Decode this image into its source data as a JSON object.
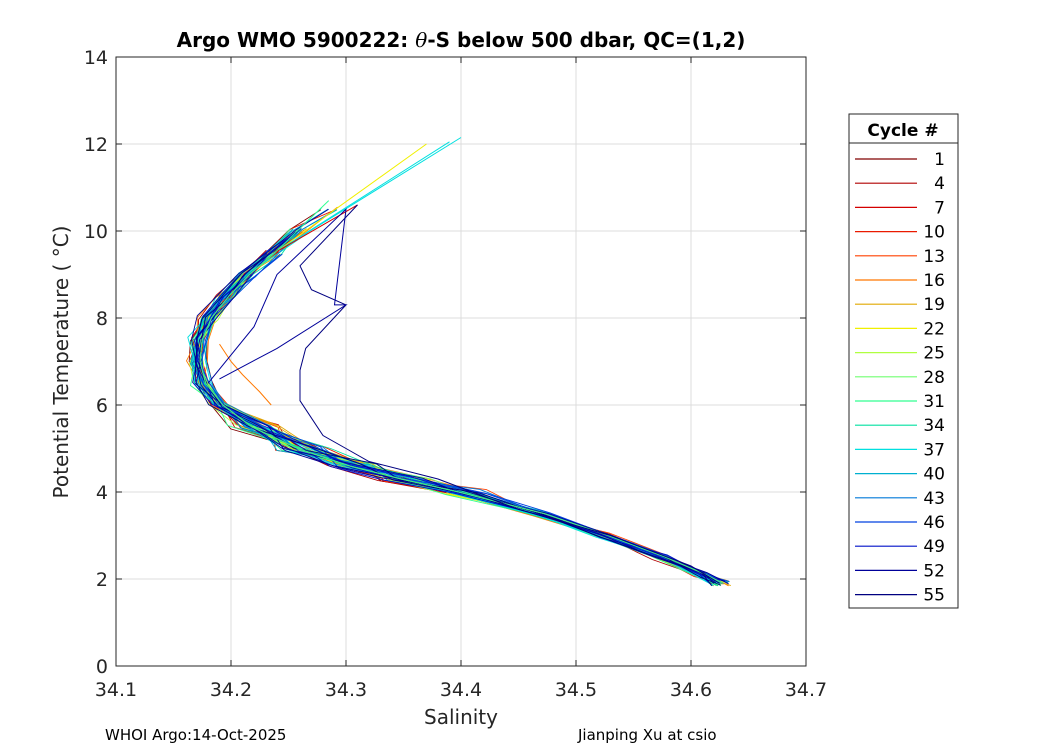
{
  "chart_data": {
    "type": "line",
    "title_prefix": "Argo WMO 5900222: ",
    "title_theta": "θ",
    "title_suffix": "-S below 500 dbar,  QC=(1,2)",
    "xlabel": "Salinity",
    "ylabel": "Potential Temperature ( °C)",
    "xlim": [
      34.1,
      34.7
    ],
    "ylim": [
      0,
      14
    ],
    "xticks": [
      "34.1",
      "34.2",
      "34.3",
      "34.4",
      "34.5",
      "34.6",
      "34.7"
    ],
    "yticks": [
      "0",
      "2",
      "4",
      "6",
      "8",
      "10",
      "12",
      "14"
    ],
    "grid": true,
    "legend": {
      "title": "Cycle #",
      "placement": "outside-right",
      "entries": [
        "1",
        "4",
        "7",
        "10",
        "13",
        "16",
        "19",
        "22",
        "25",
        "28",
        "31",
        "34",
        "37",
        "40",
        "43",
        "46",
        "49",
        "52",
        "55"
      ],
      "colors": [
        "#800000",
        "#b00000",
        "#d40000",
        "#ea1a00",
        "#ff4000",
        "#ff7800",
        "#e0a800",
        "#f0f000",
        "#b0ff40",
        "#70ff70",
        "#30ff90",
        "#00e0a0",
        "#00e0e0",
        "#00b0d0",
        "#0078d8",
        "#0040e0",
        "#0010c8",
        "#00009a",
        "#000080"
      ]
    },
    "series_colors": [
      "#800000",
      "#b00000",
      "#d40000",
      "#ea1a00",
      "#ff4000",
      "#ff7800",
      "#e0a800",
      "#f0f000",
      "#b0ff40",
      "#70ff70",
      "#30ff90",
      "#00e0a0",
      "#00e0e0",
      "#00b0d0",
      "#0078d8",
      "#0040e0",
      "#0010c8",
      "#00009a",
      "#000080"
    ],
    "base_profile": {
      "theta": [
        1.9,
        2.1,
        2.5,
        3.0,
        3.5,
        4.0,
        4.3,
        4.6,
        5.0,
        5.5,
        6.0,
        6.5,
        7.0,
        7.5,
        8.0,
        8.5,
        9.0,
        9.5,
        10.0,
        10.5
      ],
      "salinity": [
        34.625,
        34.61,
        34.575,
        34.525,
        34.47,
        34.395,
        34.345,
        34.3,
        34.255,
        34.215,
        34.19,
        34.175,
        34.17,
        34.172,
        34.18,
        34.195,
        34.213,
        34.235,
        34.258,
        34.285
      ]
    },
    "cycle_tops": {
      "cycle_22": [
        12.0,
        34.37
      ],
      "cycle_34": [
        12.05,
        34.39
      ],
      "cycle_37": [
        12.15,
        34.4
      ],
      "cycle_7": [
        10.6,
        34.31
      ],
      "cycle_31": [
        10.7,
        34.285
      ]
    },
    "cycle_55_anomaly": {
      "theta": [
        1.9,
        2.3,
        3.0,
        3.6,
        4.3,
        4.7,
        5.0,
        5.3,
        6.1,
        6.8,
        7.3,
        8.3,
        8.65,
        9.2,
        10.6
      ],
      "salinity": [
        34.625,
        34.6,
        34.53,
        34.45,
        34.38,
        34.32,
        34.3,
        34.28,
        34.26,
        34.26,
        34.265,
        34.3,
        34.27,
        34.26,
        34.31
      ]
    },
    "cycle_16_bump": {
      "theta": [
        6.0,
        6.3,
        6.7,
        7.0,
        7.4
      ],
      "salinity": [
        34.235,
        34.225,
        34.21,
        34.2,
        34.19
      ]
    }
  },
  "footer": {
    "left": "WHOI Argo:14-Oct-2025",
    "right": "Jianping Xu at csio"
  }
}
